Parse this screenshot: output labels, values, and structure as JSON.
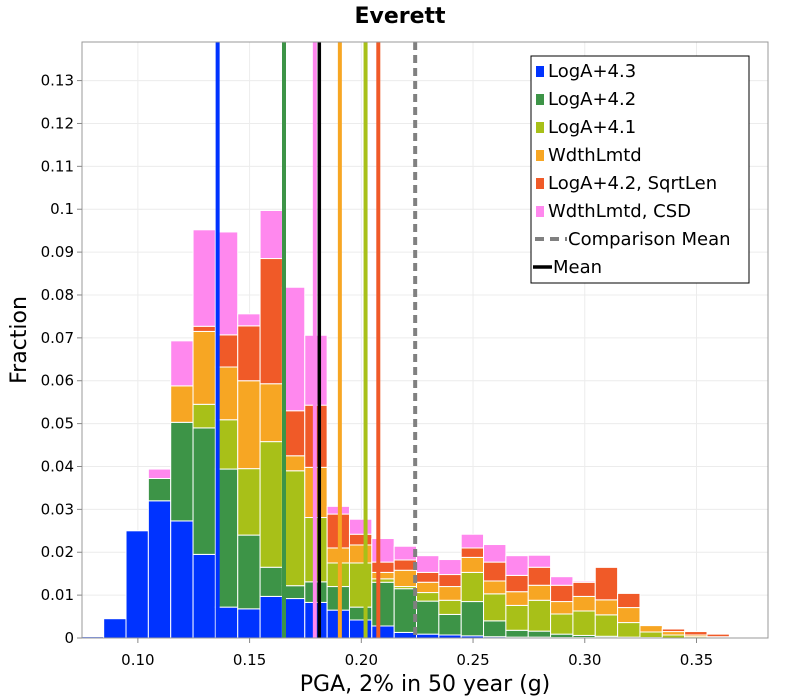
{
  "chart_data": {
    "type": "bar",
    "stacked": true,
    "title": "Everett",
    "xlabel": "PGA, 2% in 50 year (g)",
    "ylabel": "Fraction",
    "xlim": [
      0.075,
      0.382
    ],
    "ylim": [
      0,
      0.139
    ],
    "bin_width": 0.01,
    "xticks": [
      {
        "value": 0.1,
        "label": "0.10"
      },
      {
        "value": 0.15,
        "label": "0.15"
      },
      {
        "value": 0.2,
        "label": "0.20"
      },
      {
        "value": 0.25,
        "label": "0.25"
      },
      {
        "value": 0.3,
        "label": "0.30"
      },
      {
        "value": 0.35,
        "label": "0.35"
      }
    ],
    "yticks": [
      {
        "value": 0,
        "label": "0"
      },
      {
        "value": 0.01,
        "label": "0.01"
      },
      {
        "value": 0.02,
        "label": "0.02"
      },
      {
        "value": 0.03,
        "label": "0.03"
      },
      {
        "value": 0.04,
        "label": "0.04"
      },
      {
        "value": 0.05,
        "label": "0.05"
      },
      {
        "value": 0.06,
        "label": "0.06"
      },
      {
        "value": 0.07,
        "label": "0.07"
      },
      {
        "value": 0.08,
        "label": "0.08"
      },
      {
        "value": 0.09,
        "label": "0.09"
      },
      {
        "value": 0.1,
        "label": "0.1"
      },
      {
        "value": 0.11,
        "label": "0.11"
      },
      {
        "value": 0.12,
        "label": "0.12"
      },
      {
        "value": 0.13,
        "label": "0.13"
      }
    ],
    "bin_centers": [
      0.0797,
      0.0897,
      0.0997,
      0.1097,
      0.1197,
      0.1297,
      0.1397,
      0.1497,
      0.1597,
      0.1697,
      0.1797,
      0.1897,
      0.1997,
      0.2097,
      0.2197,
      0.2297,
      0.2397,
      0.2497,
      0.2597,
      0.2697,
      0.2797,
      0.2897,
      0.2997,
      0.3097,
      0.3197,
      0.3297,
      0.3397,
      0.3497,
      0.3597,
      0.3697,
      0.3797
    ],
    "series": [
      {
        "name": "LogA+4.3",
        "color": "#0033ff",
        "values": [
          0.0003,
          0.0045,
          0.025,
          0.032,
          0.0273,
          0.0195,
          0.0072,
          0.0068,
          0.0097,
          0.0092,
          0.0083,
          0.0065,
          0.0042,
          0.0028,
          0.0013,
          0.0009,
          0.0007,
          0.0005,
          0.0003,
          0.0002,
          0.0002,
          0.0001,
          0.0001,
          0.0001,
          0.0,
          0.0,
          0.0,
          0.0,
          0.0,
          0.0,
          0.0
        ]
      },
      {
        "name": "LogA+4.2",
        "color": "#3d9447",
        "values": [
          0.0,
          0.0,
          0.0,
          0.0052,
          0.023,
          0.0295,
          0.0322,
          0.0172,
          0.0068,
          0.003,
          0.0048,
          0.0055,
          0.003,
          0.0102,
          0.0102,
          0.0077,
          0.0048,
          0.008,
          0.0037,
          0.0016,
          0.0014,
          0.0008,
          0.0005,
          0.0003,
          0.0002,
          0.0001,
          0.0,
          0.0,
          0.0,
          0.0,
          0.0
        ]
      },
      {
        "name": "LogA+4.1",
        "color": "#a8c018",
        "values": [
          0.0,
          0.0,
          0.0,
          0.0,
          0.0,
          0.0055,
          0.0115,
          0.0155,
          0.0293,
          0.0268,
          0.015,
          0.0055,
          0.0103,
          0.0008,
          0.0005,
          0.002,
          0.0033,
          0.0068,
          0.0063,
          0.0058,
          0.0072,
          0.0047,
          0.0057,
          0.005,
          0.0034,
          0.0013,
          0.0007,
          0.0003,
          0.0001,
          0.0,
          0.0
        ]
      },
      {
        "name": "WdthLmtd",
        "color": "#f7a623",
        "values": [
          0.0,
          0.0,
          0.0,
          0.0,
          0.0085,
          0.017,
          0.0123,
          0.0205,
          0.0135,
          0.0035,
          0.0117,
          0.0035,
          0.0042,
          0.0015,
          0.0038,
          0.0024,
          0.0032,
          0.0035,
          0.003,
          0.0032,
          0.0035,
          0.0029,
          0.0034,
          0.0035,
          0.0035,
          0.0015,
          0.0008,
          0.0004,
          0.0002,
          0.0,
          0.0
        ]
      },
      {
        "name": "LogA+4.2, SqrtLen",
        "color": "#f05a28",
        "values": [
          0.0,
          0.0,
          0.0,
          0.0,
          0.0,
          0.0012,
          0.0075,
          0.0128,
          0.0292,
          0.0105,
          0.0145,
          0.0079,
          0.0025,
          0.0024,
          0.0024,
          0.0023,
          0.0028,
          0.0022,
          0.0044,
          0.0038,
          0.0042,
          0.0038,
          0.0033,
          0.0076,
          0.0033,
          0.0002,
          0.0006,
          0.0008,
          0.0006,
          0.0,
          0.0
        ]
      },
      {
        "name": "WdthLmtd, CSD",
        "color": "#ff88ee",
        "values": [
          0.0,
          0.0,
          0.0,
          0.0022,
          0.0105,
          0.0225,
          0.024,
          0.0028,
          0.0112,
          0.0288,
          0.0163,
          0.0018,
          0.0035,
          0.0055,
          0.0032,
          0.0039,
          0.0035,
          0.0032,
          0.0041,
          0.0046,
          0.0028,
          0.002,
          0.0003,
          0.0001,
          0.0,
          0.0,
          0.0001,
          0.0,
          0.0,
          0.0,
          0.0
        ]
      }
    ],
    "vlines": [
      {
        "label": "LogA+4.3",
        "x": 0.1357,
        "color": "#0033ff",
        "style": "solid"
      },
      {
        "label": "LogA+4.2",
        "x": 0.1654,
        "color": "#3d9447",
        "style": "solid"
      },
      {
        "label": "WdthLmtd, CSD",
        "x": 0.1792,
        "color": "#ff88ee",
        "style": "solid"
      },
      {
        "label": "Mean",
        "x": 0.1812,
        "color": "#000000",
        "style": "solid"
      },
      {
        "label": "WdthLmtd",
        "x": 0.1904,
        "color": "#f7a623",
        "style": "solid"
      },
      {
        "label": "LogA+4.1",
        "x": 0.2019,
        "color": "#a8c018",
        "style": "solid"
      },
      {
        "label": "LogA+4.2, SqrtLen",
        "x": 0.2076,
        "color": "#f05a28",
        "style": "solid"
      },
      {
        "label": "Comparison Mean",
        "x": 0.2241,
        "color": "#808080",
        "style": "dashed"
      }
    ],
    "legend": {
      "position": "top-right",
      "entries": [
        {
          "label": "LogA+4.3",
          "color": "#0033ff",
          "kind": "square"
        },
        {
          "label": "LogA+4.2",
          "color": "#3d9447",
          "kind": "square"
        },
        {
          "label": "LogA+4.1",
          "color": "#a8c018",
          "kind": "square"
        },
        {
          "label": "WdthLmtd",
          "color": "#f7a623",
          "kind": "square"
        },
        {
          "label": "LogA+4.2, SqrtLen",
          "color": "#f05a28",
          "kind": "square"
        },
        {
          "label": "WdthLmtd, CSD",
          "color": "#ff88ee",
          "kind": "square"
        },
        {
          "label": "Comparison Mean",
          "color": "#808080",
          "kind": "dashed"
        },
        {
          "label": "Mean",
          "color": "#000000",
          "kind": "line"
        }
      ]
    },
    "grid": true
  }
}
